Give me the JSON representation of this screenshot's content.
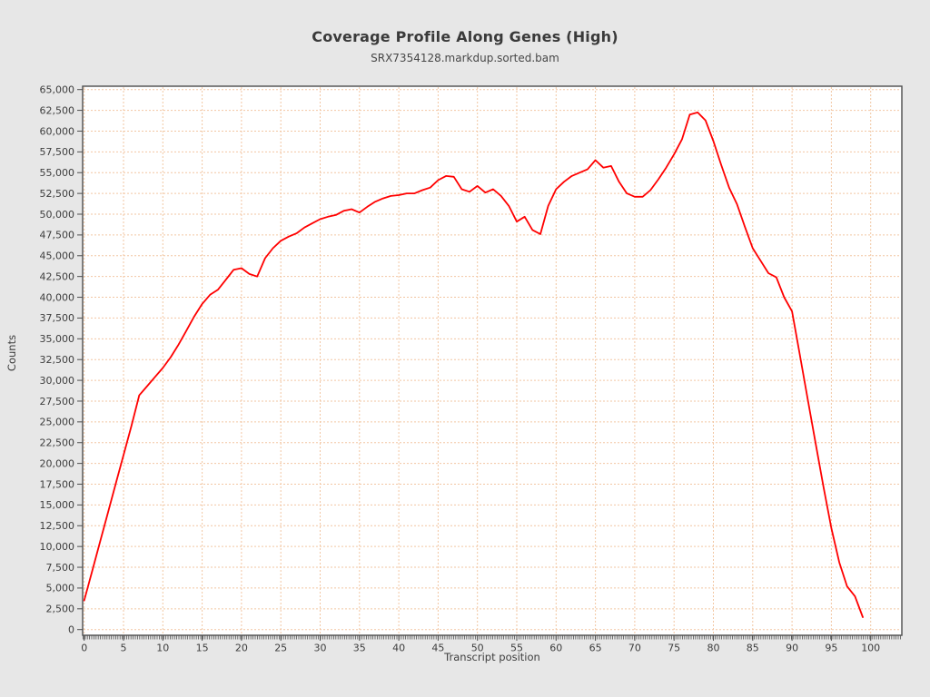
{
  "header": {
    "title": "Coverage Profile Along Genes (High)",
    "subtitle": "SRX7354128.markdup.sorted.bam"
  },
  "colors": {
    "background": "#e7e7e7",
    "plot_background": "#ffffff",
    "plot_border": "#4d4d4d",
    "grid": "#f2c6a2",
    "line": "#ff0000",
    "text": "#3d3d3d"
  },
  "chart_data": {
    "type": "line",
    "title": "Coverage Profile Along Genes (High)",
    "subtitle": "SRX7354128.markdup.sorted.bam",
    "xlabel": "Transcript position",
    "ylabel": "Counts",
    "xlim": [
      0,
      104
    ],
    "ylim": [
      0,
      65000
    ],
    "grid": true,
    "legend": "none",
    "line_color": "#ff0000",
    "grid_color": "#f2c6a2",
    "y_tick_step": 2500,
    "y_tick_labels": [
      "0",
      "2,500",
      "5,000",
      "7,500",
      "10,000",
      "12,500",
      "15,000",
      "17,500",
      "20,000",
      "22,500",
      "25,000",
      "27,500",
      "30,000",
      "32,500",
      "35,000",
      "37,500",
      "40,000",
      "42,500",
      "45,000",
      "47,500",
      "50,000",
      "52,500",
      "55,000",
      "57,500",
      "60,000",
      "62,500",
      "65,000"
    ],
    "x_tick_labels": [
      "0",
      "5",
      "10",
      "15",
      "20",
      "25",
      "30",
      "35",
      "40",
      "45",
      "50",
      "55",
      "60",
      "65",
      "70",
      "75",
      "80",
      "85",
      "90",
      "95",
      "100"
    ],
    "x": [
      0,
      1,
      2,
      3,
      4,
      5,
      6,
      7,
      8,
      9,
      10,
      11,
      12,
      13,
      14,
      15,
      16,
      17,
      18,
      19,
      20,
      21,
      22,
      23,
      24,
      25,
      26,
      27,
      28,
      29,
      30,
      31,
      32,
      33,
      34,
      35,
      36,
      37,
      38,
      39,
      40,
      41,
      42,
      43,
      44,
      45,
      46,
      47,
      48,
      49,
      50,
      51,
      52,
      53,
      54,
      55,
      56,
      57,
      58,
      59,
      60,
      61,
      62,
      63,
      64,
      65,
      66,
      67,
      68,
      69,
      70,
      71,
      72,
      73,
      74,
      75,
      76,
      77,
      78,
      79,
      80,
      81,
      82,
      83,
      84,
      85,
      86,
      87,
      88,
      89,
      90,
      91,
      92,
      93,
      94,
      95,
      96,
      97,
      98,
      99
    ],
    "values": [
      3500,
      7000,
      10500,
      14000,
      17500,
      21000,
      24500,
      28200,
      29300,
      30400,
      31500,
      32800,
      34300,
      36000,
      37700,
      39200,
      40300,
      40900,
      42100,
      43300,
      43500,
      42800,
      42500,
      44700,
      45900,
      46800,
      47300,
      47700,
      48400,
      48900,
      49400,
      49700,
      49900,
      50400,
      50600,
      50200,
      50900,
      51500,
      51900,
      52200,
      52300,
      52500,
      52500,
      52900,
      53200,
      54100,
      54600,
      54500,
      53000,
      52700,
      53400,
      52600,
      53000,
      52200,
      51000,
      49100,
      49700,
      48100,
      47600,
      51000,
      53000,
      53900,
      54600,
      55000,
      55400,
      56500,
      55600,
      55800,
      53900,
      52500,
      52100,
      52100,
      52900,
      54200,
      55600,
      57200,
      59000,
      62000,
      62250,
      61300,
      58800,
      55900,
      53200,
      51200,
      48500,
      45900,
      44400,
      42900,
      42400,
      40000,
      38300,
      33000,
      27700,
      22400,
      17200,
      12200,
      8100,
      5200,
      4000,
      1500
    ]
  }
}
